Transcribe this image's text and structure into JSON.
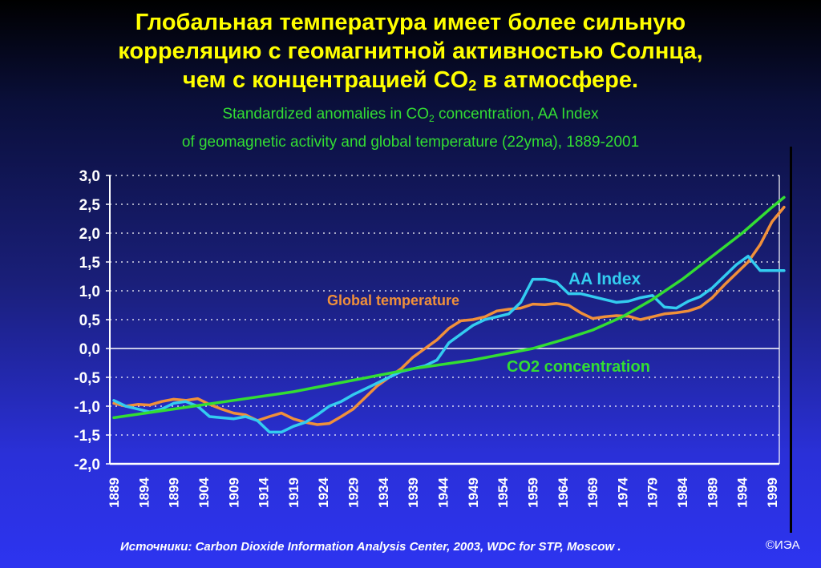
{
  "title": {
    "line1": "Глобальная температура имеет более сильную",
    "line2": "корреляцию с геомагнитной активностью Солнца,",
    "line3_a": "чем с концентрацией CO",
    "line3_sub": "2",
    "line3_b": " в атмосфере."
  },
  "subtitle": {
    "line1_a": "Standardized anomalies in CO",
    "line1_sub": "2",
    "line1_b": " concentration, AA Index",
    "line2": "of geomagnetic activity and global temperature (22yma), 1889-2001"
  },
  "footer": {
    "source": "Источники: Carbon Dioxide Information Analysis Center, 2003, WDC for STP, Moscow .",
    "copyright": "©ИЭА"
  },
  "chart_data": {
    "type": "line",
    "title": "Standardized anomalies in CO2 concentration, AA Index of geomagnetic activity and global temperature (22yma), 1889-2001",
    "xlabel": "",
    "ylabel": "",
    "xlim": [
      1889,
      2001
    ],
    "ylim": [
      -2.0,
      3.0
    ],
    "grid": true,
    "y_ticks": [
      "3,0",
      "2,5",
      "2,0",
      "1,5",
      "1,0",
      "0,5",
      "0,0",
      "-0,5",
      "-1,0",
      "-1,5",
      "-2,0"
    ],
    "x_ticks": [
      "1889",
      "1894",
      "1899",
      "1904",
      "1909",
      "1914",
      "1919",
      "1924",
      "1929",
      "1934",
      "1939",
      "1944",
      "1949",
      "1954",
      "1959",
      "1964",
      "1969",
      "1974",
      "1979",
      "1984",
      "1989",
      "1994",
      "1999"
    ],
    "series": [
      {
        "name": "Global temperature",
        "color": "#f0903a",
        "x": [
          1889,
          1891,
          1893,
          1895,
          1897,
          1899,
          1901,
          1903,
          1905,
          1907,
          1909,
          1911,
          1913,
          1915,
          1917,
          1919,
          1921,
          1923,
          1925,
          1927,
          1929,
          1931,
          1933,
          1935,
          1937,
          1939,
          1941,
          1943,
          1945,
          1947,
          1949,
          1951,
          1953,
          1955,
          1957,
          1959,
          1961,
          1963,
          1965,
          1967,
          1969,
          1971,
          1973,
          1975,
          1977,
          1979,
          1981,
          1983,
          1985,
          1987,
          1989,
          1991,
          1993,
          1995,
          1997,
          1999,
          2001
        ],
        "values": [
          -0.95,
          -1.0,
          -0.97,
          -0.98,
          -0.92,
          -0.88,
          -0.9,
          -0.87,
          -0.97,
          -1.05,
          -1.12,
          -1.15,
          -1.25,
          -1.18,
          -1.12,
          -1.22,
          -1.28,
          -1.32,
          -1.3,
          -1.18,
          -1.05,
          -0.85,
          -0.65,
          -0.5,
          -0.35,
          -0.15,
          0.0,
          0.15,
          0.35,
          0.48,
          0.5,
          0.55,
          0.65,
          0.68,
          0.7,
          0.77,
          0.76,
          0.78,
          0.75,
          0.62,
          0.52,
          0.55,
          0.57,
          0.56,
          0.5,
          0.55,
          0.6,
          0.62,
          0.65,
          0.72,
          0.88,
          1.1,
          1.3,
          1.5,
          1.8,
          2.2,
          2.45
        ]
      },
      {
        "name": "AA Index",
        "color": "#33ccf0",
        "x": [
          1889,
          1891,
          1893,
          1895,
          1897,
          1899,
          1901,
          1903,
          1905,
          1907,
          1909,
          1911,
          1913,
          1915,
          1917,
          1919,
          1921,
          1923,
          1925,
          1927,
          1929,
          1931,
          1933,
          1935,
          1937,
          1939,
          1941,
          1943,
          1945,
          1947,
          1949,
          1951,
          1953,
          1955,
          1957,
          1959,
          1961,
          1963,
          1965,
          1967,
          1969,
          1971,
          1973,
          1975,
          1977,
          1979,
          1981,
          1983,
          1985,
          1987,
          1989,
          1991,
          1993,
          1995,
          1997,
          1999,
          2001
        ],
        "values": [
          -0.9,
          -1.0,
          -1.05,
          -1.1,
          -1.05,
          -0.95,
          -0.92,
          -1.0,
          -1.18,
          -1.2,
          -1.22,
          -1.18,
          -1.25,
          -1.45,
          -1.45,
          -1.35,
          -1.28,
          -1.15,
          -1.0,
          -0.92,
          -0.8,
          -0.7,
          -0.6,
          -0.5,
          -0.4,
          -0.35,
          -0.3,
          -0.2,
          0.1,
          0.25,
          0.4,
          0.5,
          0.55,
          0.6,
          0.8,
          1.2,
          1.2,
          1.15,
          0.95,
          0.95,
          0.9,
          0.85,
          0.8,
          0.82,
          0.88,
          0.92,
          0.72,
          0.7,
          0.82,
          0.9,
          1.05,
          1.25,
          1.45,
          1.6,
          1.35,
          1.35,
          1.35
        ]
      },
      {
        "name": "CO2 concentration",
        "color": "#33dd33",
        "x": [
          1889,
          1899,
          1909,
          1919,
          1929,
          1939,
          1949,
          1959,
          1964,
          1969,
          1974,
          1979,
          1984,
          1989,
          1994,
          1999,
          2001
        ],
        "values": [
          -1.2,
          -1.05,
          -0.9,
          -0.75,
          -0.55,
          -0.35,
          -0.2,
          0.0,
          0.15,
          0.32,
          0.55,
          0.85,
          1.2,
          1.6,
          2.0,
          2.45,
          2.62
        ]
      }
    ],
    "annotations": [
      {
        "text": "Global temperature",
        "color": "#f0903a"
      },
      {
        "text": "AA Index",
        "color": "#33ccf0"
      },
      {
        "text": "CO2 concentration",
        "color": "#33dd33"
      }
    ]
  }
}
